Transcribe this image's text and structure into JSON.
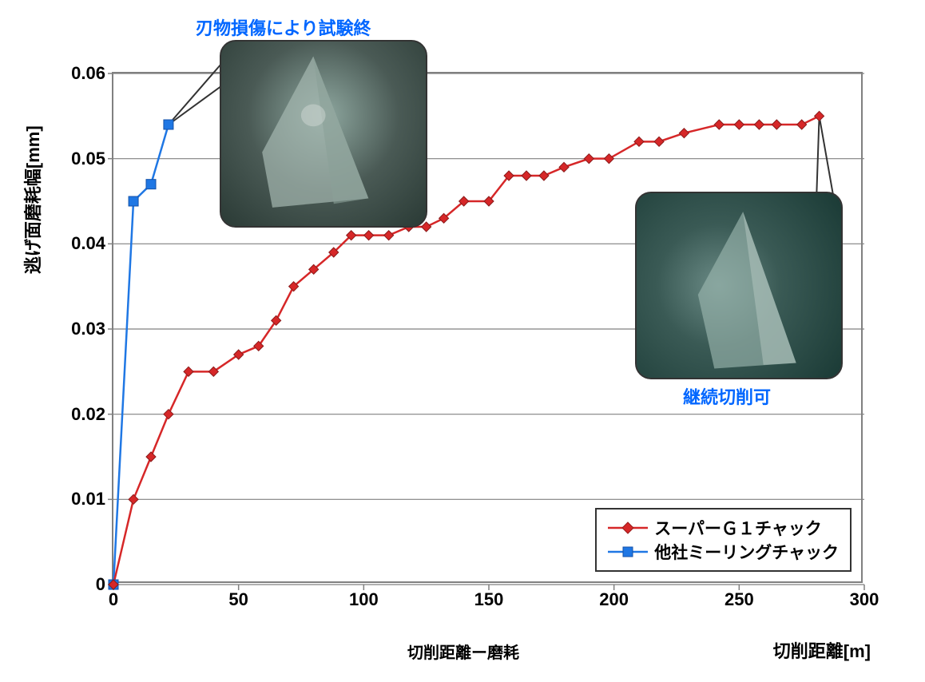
{
  "chart": {
    "type": "line-scatter",
    "y_axis_label": "逃げ面磨耗幅[mm]",
    "x_axis_label_right": "切削距離[m]",
    "x_axis_label_center": "切削距離ー磨耗",
    "xlim": [
      0,
      300
    ],
    "ylim": [
      0,
      0.06
    ],
    "xtick_step": 50,
    "ytick_step": 0.01,
    "xticks": [
      "0",
      "50",
      "100",
      "150",
      "200",
      "250",
      "300"
    ],
    "yticks": [
      "0",
      "0.01",
      "0.02",
      "0.03",
      "0.04",
      "0.05",
      "0.06"
    ],
    "background_color": "#ffffff",
    "grid_color": "#808080",
    "axis_color": "#808080",
    "series": {
      "red": {
        "label": "スーパーＧ１チャック",
        "color": "#d62728",
        "marker": "diamond",
        "marker_size": 12,
        "line_width": 2.5,
        "data": [
          [
            0,
            0.0
          ],
          [
            8,
            0.01
          ],
          [
            15,
            0.015
          ],
          [
            22,
            0.02
          ],
          [
            30,
            0.025
          ],
          [
            40,
            0.025
          ],
          [
            50,
            0.027
          ],
          [
            58,
            0.028
          ],
          [
            65,
            0.031
          ],
          [
            72,
            0.035
          ],
          [
            80,
            0.037
          ],
          [
            88,
            0.039
          ],
          [
            95,
            0.041
          ],
          [
            102,
            0.041
          ],
          [
            110,
            0.041
          ],
          [
            118,
            0.042
          ],
          [
            125,
            0.042
          ],
          [
            132,
            0.043
          ],
          [
            140,
            0.045
          ],
          [
            150,
            0.045
          ],
          [
            158,
            0.048
          ],
          [
            165,
            0.048
          ],
          [
            172,
            0.048
          ],
          [
            180,
            0.049
          ],
          [
            190,
            0.05
          ],
          [
            198,
            0.05
          ],
          [
            210,
            0.052
          ],
          [
            218,
            0.052
          ],
          [
            228,
            0.053
          ],
          [
            242,
            0.054
          ],
          [
            250,
            0.054
          ],
          [
            258,
            0.054
          ],
          [
            265,
            0.054
          ],
          [
            275,
            0.054
          ],
          [
            282,
            0.055
          ]
        ]
      },
      "blue": {
        "label": "他社ミーリングチャック",
        "color": "#1f77e4",
        "marker": "square",
        "marker_size": 12,
        "line_width": 2.5,
        "data": [
          [
            0,
            0.0
          ],
          [
            8,
            0.045
          ],
          [
            15,
            0.047
          ],
          [
            22,
            0.054
          ]
        ]
      }
    },
    "callouts": {
      "top_left": {
        "label": "刃物損傷により試験終",
        "points_to_series": "blue",
        "points_to_index": 3
      },
      "right": {
        "label": "継続切削可",
        "points_to_series": "red",
        "points_to_index": 34
      }
    },
    "legend": {
      "position": "bottom-right",
      "items": [
        "red",
        "blue"
      ]
    }
  }
}
